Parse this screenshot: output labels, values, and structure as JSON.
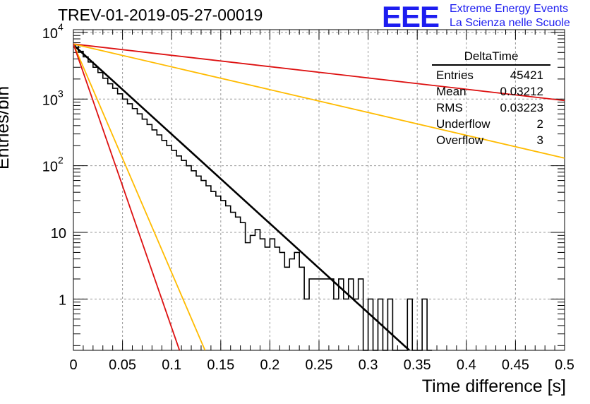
{
  "chart_data": {
    "type": "histogram",
    "title": "TREV-01-2019-05-27-00019",
    "xlabel": "Time difference [s]",
    "ylabel": "Entries/bin",
    "xlim": [
      0,
      0.5
    ],
    "ylim_log": [
      0.17,
      11000
    ],
    "log_y": true,
    "grid": true,
    "x_ticks": [
      0,
      0.05,
      0.1,
      0.15,
      0.2,
      0.25,
      0.3,
      0.35,
      0.4,
      0.45,
      0.5
    ],
    "y_ticks": [
      {
        "value": 1,
        "label": "1"
      },
      {
        "value": 10,
        "label": "10"
      },
      {
        "value": 100,
        "label": "10",
        "exp": "2"
      },
      {
        "value": 1000,
        "label": "10",
        "exp": "3"
      },
      {
        "value": 10000,
        "label": "10",
        "exp": "4"
      }
    ],
    "bin_width": 0.005,
    "histogram": [
      {
        "x0": 0.0,
        "y": 6500
      },
      {
        "x0": 0.005,
        "y": 5200
      },
      {
        "x0": 0.01,
        "y": 4300
      },
      {
        "x0": 0.015,
        "y": 3600
      },
      {
        "x0": 0.02,
        "y": 3000
      },
      {
        "x0": 0.025,
        "y": 2500
      },
      {
        "x0": 0.03,
        "y": 2050
      },
      {
        "x0": 0.035,
        "y": 1700
      },
      {
        "x0": 0.04,
        "y": 1450
      },
      {
        "x0": 0.045,
        "y": 1200
      },
      {
        "x0": 0.05,
        "y": 1000
      },
      {
        "x0": 0.055,
        "y": 850
      },
      {
        "x0": 0.06,
        "y": 720
      },
      {
        "x0": 0.065,
        "y": 600
      },
      {
        "x0": 0.07,
        "y": 500
      },
      {
        "x0": 0.075,
        "y": 415
      },
      {
        "x0": 0.08,
        "y": 345
      },
      {
        "x0": 0.085,
        "y": 290
      },
      {
        "x0": 0.09,
        "y": 240
      },
      {
        "x0": 0.095,
        "y": 200
      },
      {
        "x0": 0.1,
        "y": 170
      },
      {
        "x0": 0.105,
        "y": 140
      },
      {
        "x0": 0.11,
        "y": 120
      },
      {
        "x0": 0.115,
        "y": 100
      },
      {
        "x0": 0.12,
        "y": 84
      },
      {
        "x0": 0.125,
        "y": 70
      },
      {
        "x0": 0.13,
        "y": 60
      },
      {
        "x0": 0.135,
        "y": 50
      },
      {
        "x0": 0.14,
        "y": 41
      },
      {
        "x0": 0.145,
        "y": 35
      },
      {
        "x0": 0.15,
        "y": 30
      },
      {
        "x0": 0.155,
        "y": 25
      },
      {
        "x0": 0.16,
        "y": 20
      },
      {
        "x0": 0.165,
        "y": 17
      },
      {
        "x0": 0.17,
        "y": 14
      },
      {
        "x0": 0.175,
        "y": 7
      },
      {
        "x0": 0.18,
        "y": 9
      },
      {
        "x0": 0.185,
        "y": 11
      },
      {
        "x0": 0.19,
        "y": 8
      },
      {
        "x0": 0.195,
        "y": 6
      },
      {
        "x0": 0.2,
        "y": 8
      },
      {
        "x0": 0.205,
        "y": 6
      },
      {
        "x0": 0.21,
        "y": 5
      },
      {
        "x0": 0.215,
        "y": 3
      },
      {
        "x0": 0.22,
        "y": 4
      },
      {
        "x0": 0.225,
        "y": 5
      },
      {
        "x0": 0.23,
        "y": 3
      },
      {
        "x0": 0.235,
        "y": 1
      },
      {
        "x0": 0.24,
        "y": 2
      },
      {
        "x0": 0.245,
        "y": 2
      },
      {
        "x0": 0.25,
        "y": 2
      },
      {
        "x0": 0.255,
        "y": 2
      },
      {
        "x0": 0.26,
        "y": 2
      },
      {
        "x0": 0.265,
        "y": 1
      },
      {
        "x0": 0.27,
        "y": 2
      },
      {
        "x0": 0.275,
        "y": 1
      },
      {
        "x0": 0.28,
        "y": 2
      },
      {
        "x0": 0.285,
        "y": 1
      },
      {
        "x0": 0.29,
        "y": 2
      },
      {
        "x0": 0.295,
        "y": 0
      },
      {
        "x0": 0.3,
        "y": 1
      },
      {
        "x0": 0.305,
        "y": 0
      },
      {
        "x0": 0.31,
        "y": 1
      },
      {
        "x0": 0.315,
        "y": 0
      },
      {
        "x0": 0.32,
        "y": 1
      },
      {
        "x0": 0.325,
        "y": 0
      },
      {
        "x0": 0.33,
        "y": 0
      },
      {
        "x0": 0.335,
        "y": 0
      },
      {
        "x0": 0.34,
        "y": 1
      },
      {
        "x0": 0.345,
        "y": 0
      },
      {
        "x0": 0.35,
        "y": 0
      },
      {
        "x0": 0.355,
        "y": 1
      },
      {
        "x0": 0.36,
        "y": 0
      }
    ],
    "lines": [
      {
        "color": "#000000",
        "width": 2.6,
        "points": [
          [
            0,
            6500
          ],
          [
            0.342,
            0.17
          ]
        ]
      },
      {
        "color": "#dd1111",
        "width": 1.8,
        "points": [
          [
            0,
            6700
          ],
          [
            0.5,
            950
          ]
        ]
      },
      {
        "color": "#ffbb00",
        "width": 1.8,
        "points": [
          [
            0,
            6700
          ],
          [
            0.5,
            130
          ]
        ]
      },
      {
        "color": "#ffbb00",
        "width": 1.8,
        "points": [
          [
            0,
            6700
          ],
          [
            0.134,
            0.17
          ]
        ]
      },
      {
        "color": "#dd1111",
        "width": 1.8,
        "points": [
          [
            0,
            6700
          ],
          [
            0.108,
            0.17
          ]
        ]
      }
    ]
  },
  "logo": {
    "mark": "EEE",
    "line1": "Extreme Energy Events",
    "line2": "La Scienza nelle Scuole"
  },
  "stats": {
    "name": "DeltaTime",
    "rows": [
      {
        "label": "Entries",
        "value": "45421"
      },
      {
        "label": "Mean",
        "value": "0.03212"
      },
      {
        "label": "RMS",
        "value": "0.03223"
      },
      {
        "label": "Underflow",
        "value": "2"
      },
      {
        "label": "Overflow",
        "value": "3"
      }
    ]
  }
}
